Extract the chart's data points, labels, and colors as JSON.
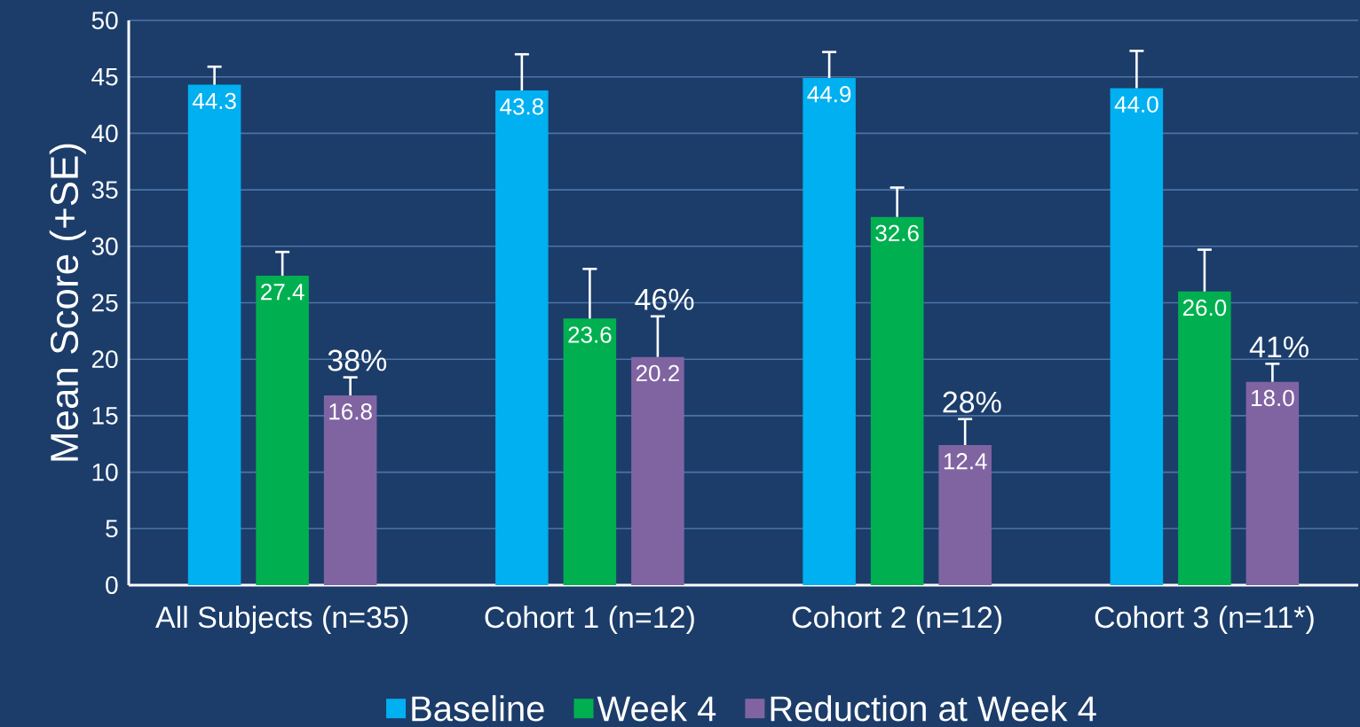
{
  "chart_data": {
    "type": "bar",
    "ylabel": "Mean Score (+SE)",
    "categories": [
      "All Subjects (n=35)",
      "Cohort 1 (n=12)",
      "Cohort 2 (n=12)",
      "Cohort 3 (n=11*)"
    ],
    "series": [
      {
        "name": "Baseline",
        "color": "#00b0f0",
        "values": [
          44.3,
          43.8,
          44.9,
          44.0
        ],
        "value_labels": [
          "44.3",
          "43.8",
          "44.9",
          "44.0"
        ],
        "errors": [
          [
            44.3,
            45.9
          ],
          [
            43.8,
            47.0
          ],
          [
            44.9,
            47.2
          ],
          [
            44.0,
            47.3
          ]
        ]
      },
      {
        "name": "Week 4",
        "color": "#00b050",
        "values": [
          27.4,
          23.6,
          32.6,
          26.0
        ],
        "value_labels": [
          "27.4",
          "23.6",
          "32.6",
          "26.0"
        ],
        "errors": [
          [
            27.4,
            29.5
          ],
          [
            23.6,
            28.0
          ],
          [
            32.6,
            35.2
          ],
          [
            26.0,
            29.7
          ]
        ]
      },
      {
        "name": "Reduction at Week 4",
        "color": "#8064a2",
        "values": [
          16.8,
          20.2,
          12.4,
          18.0
        ],
        "value_labels": [
          "16.8",
          "20.2",
          "12.4",
          "18.0"
        ],
        "errors": [
          [
            16.8,
            18.4
          ],
          [
            20.2,
            23.8
          ],
          [
            12.4,
            14.7
          ],
          [
            18.0,
            19.6
          ]
        ]
      }
    ],
    "annotations": [
      "38%",
      "46%",
      "28%",
      "41%"
    ],
    "ylim": [
      0,
      50
    ],
    "yticks": [
      0,
      5,
      10,
      15,
      20,
      25,
      30,
      35,
      40,
      45,
      50
    ],
    "grid": "y",
    "legend": "bottom"
  }
}
